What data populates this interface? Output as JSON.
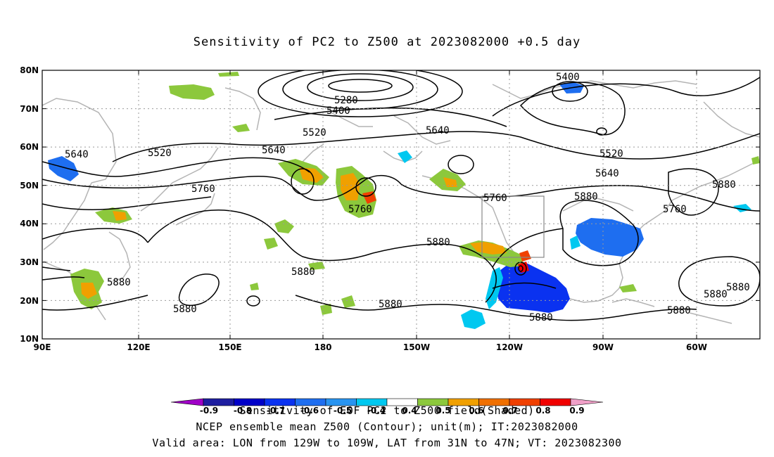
{
  "title": "Sensitivity of PC2 to Z500 at 2023082000 +0.5 day",
  "map": {
    "lon_range": [
      "90E",
      "55W"
    ],
    "lat_range": [
      "10N",
      "80N"
    ],
    "lat_ticks": [
      "80N",
      "70N",
      "60N",
      "50N",
      "40N",
      "30N",
      "20N",
      "10N"
    ],
    "lon_ticks": [
      "90E",
      "120E",
      "150E",
      "180",
      "150W",
      "120W",
      "90W",
      "60W"
    ],
    "grid": "dotted",
    "valid_box": {
      "lon": [
        "129W",
        "109W"
      ],
      "lat": [
        "31N",
        "47N"
      ]
    },
    "contour_labels": [
      "5280",
      "5400",
      "5400",
      "5520",
      "5520",
      "5520",
      "5640",
      "5640",
      "5640",
      "5640",
      "5760",
      "5760",
      "5760",
      "5760",
      "5880",
      "5880",
      "5880",
      "5880",
      "5880",
      "5880",
      "5880",
      "5880",
      "5880",
      "5880",
      "5880",
      "5880"
    ]
  },
  "colorbar": {
    "labels": [
      "-0.9",
      "-0.8",
      "-0.7",
      "-0.6",
      "-0.5",
      "-0.4",
      "0.4",
      "0.5",
      "0.6",
      "0.7",
      "0.8",
      "0.9"
    ],
    "colors": [
      "#a000c8",
      "#1e1ea0",
      "#0000c8",
      "#0a32f0",
      "#1e6ef0",
      "#2894f0",
      "#00c8f0",
      "#ffffff",
      "#8cc83c",
      "#f0a000",
      "#f07000",
      "#f04000",
      "#f00000",
      "#f0a0c8"
    ]
  },
  "footer": {
    "line1": "Sensitivity of EOF PC2 to Z500 field(Shaded)",
    "line2": "NCEP ensemble mean Z500 (Contour); unit(m); IT:2023082000",
    "line3": "Valid area: LON from 129W to 109W, LAT from 31N to 47N; VT: 2023082300"
  }
}
